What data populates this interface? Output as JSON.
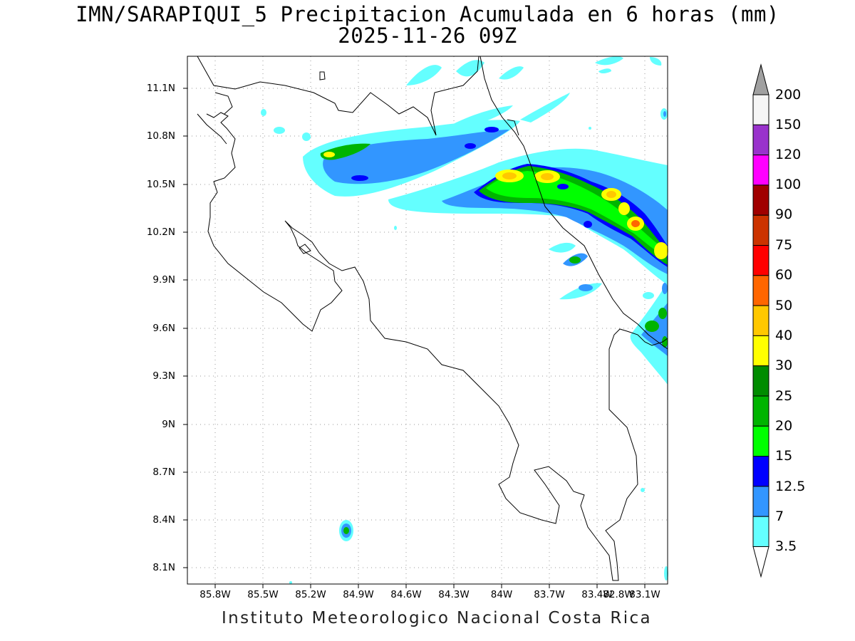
{
  "title": {
    "line1": "IMN/SARAPIQUI_5 Precipitacion Acumulada en 6 horas (mm)",
    "line2": "2025-11-26 09Z"
  },
  "footer": "Instituto Meteorologico Nacional Costa Rica",
  "map": {
    "lat_labels": [
      "11.1N",
      "10.8N",
      "10.5N",
      "10.2N",
      "9.9N",
      "9.6N",
      "9.3N",
      "9N",
      "8.7N",
      "8.4N",
      "8.1N"
    ],
    "lon_labels": [
      "85.8W",
      "85.5W",
      "85.2W",
      "84.9W",
      "84.6W",
      "84.3W",
      "84W",
      "83.7W",
      "83.4W",
      "83.1W",
      "82.8W"
    ],
    "gridlines": true
  },
  "colorbar": {
    "labels": [
      "200",
      "150",
      "120",
      "100",
      "90",
      "75",
      "60",
      "50",
      "40",
      "30",
      "25",
      "20",
      "15",
      "12.5",
      "7",
      "3.5"
    ],
    "colors": [
      "#a0a0a0",
      "#f5f5f5",
      "#9932cc",
      "#ff00ff",
      "#a00000",
      "#cc3300",
      "#ff0000",
      "#ff6600",
      "#ffc800",
      "#ffff00",
      "#008c00",
      "#00b400",
      "#00ff00",
      "#0000ff",
      "#3296ff",
      "#64ffff",
      "#ffffff"
    ]
  },
  "precip_levels": {
    "light_cyan": "#64ffff",
    "blue": "#3296ff",
    "dark_blue": "#0000ff",
    "green": "#00b400",
    "bright_green": "#00ff00",
    "yellow": "#ffff00",
    "orange": "#ffc800",
    "red": "#ff6600"
  }
}
